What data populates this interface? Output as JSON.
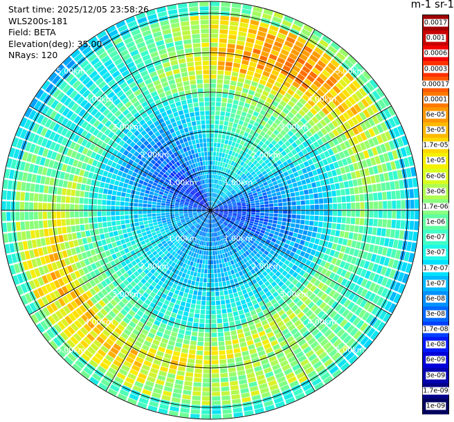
{
  "info": {
    "start_time": "Start time: 2025/12/05 23:58:26",
    "instrument": "WLS200s-181",
    "field": "Field: BETA",
    "elevation": "Elevation(deg): 35.00",
    "nrays": "NRays: 120"
  },
  "colorbar": {
    "title": "m-1 sr-1",
    "labels": [
      "0.0017",
      "0.001",
      "0.0006",
      "0.0003",
      "0.00017",
      "0.0001",
      "6e-05",
      "3e-05",
      "1.7e-05",
      "1e-05",
      "6e-06",
      "3e-06",
      "1.7e-06",
      "1e-06",
      "6e-07",
      "3e-07",
      "1.7e-07",
      "1e-07",
      "6e-08",
      "3e-08",
      "1.7e-08",
      "1e-08",
      "6e-09",
      "3e-09",
      "1.7e-09",
      "1e-09"
    ],
    "colors": [
      "#a00000",
      "#c80000",
      "#f00000",
      "#ff3000",
      "#ff5800",
      "#ff7800",
      "#ff9800",
      "#ffb800",
      "#ffd800",
      "#f5f000",
      "#d8ff20",
      "#b0ff50",
      "#88ff80",
      "#60ffa0",
      "#40ffc8",
      "#20f8e8",
      "#00e0ff",
      "#00b8ff",
      "#0090ff",
      "#0068ff",
      "#0040ff",
      "#0018f8",
      "#0000d8",
      "#0000b0",
      "#000088",
      "#000060"
    ]
  },
  "chart_data": {
    "type": "heatmap",
    "projection": "polar",
    "field": "BETA",
    "n_rays": 120,
    "range_rings_km": [
      1,
      2,
      3,
      4,
      5
    ],
    "ring_labels": [
      "1.00km",
      "2.00km",
      "3.00km",
      "4.00km",
      "5.00km"
    ],
    "max_range_km": 5.3,
    "colormap": "jet",
    "scale": "log",
    "value_range": [
      1e-09,
      0.0017
    ],
    "grid": true,
    "spoke_angles_deg": [
      0,
      30,
      60,
      90,
      120,
      150,
      180,
      210,
      240,
      270,
      300,
      330
    ]
  }
}
